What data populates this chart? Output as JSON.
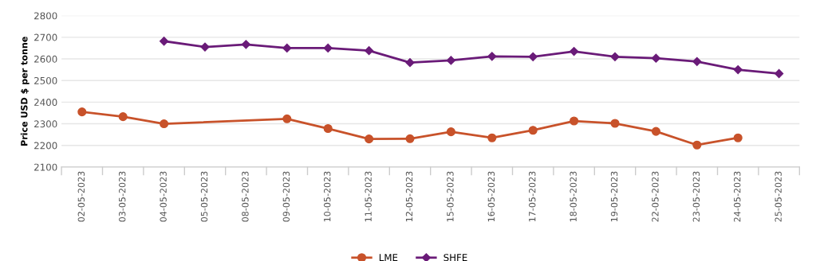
{
  "chart_data": {
    "type": "line",
    "ylabel": "Price USD $ per tonne",
    "categories": [
      "02-05-2023",
      "03-05-2023",
      "04-05-2023",
      "05-05-2023",
      "08-05-2023",
      "09-05-2023",
      "10-05-2023",
      "11-05-2023",
      "12-05-2023",
      "15-05-2023",
      "16-05-2023",
      "17-05-2023",
      "18-05-2023",
      "19-05-2023",
      "22-05-2023",
      "23-05-2023",
      "24-05-2023",
      "25-05-2023"
    ],
    "series": [
      {
        "name": "LME",
        "color": "#c8522a",
        "marker": "circle",
        "values": [
          2355,
          2333,
          2300,
          null,
          null,
          2323,
          2278,
          2230,
          2231,
          2263,
          2235,
          2270,
          2313,
          2302,
          2265,
          2202,
          2235,
          null
        ]
      },
      {
        "name": "SHFE",
        "color": "#6a1b78",
        "marker": "diamond",
        "values": [
          null,
          null,
          2682,
          2655,
          2667,
          2650,
          2650,
          2638,
          2583,
          2593,
          2612,
          2610,
          2635,
          2610,
          2603,
          2588,
          2550,
          2532
        ]
      }
    ],
    "ylim": [
      2100,
      2800
    ],
    "yticks": [
      2100,
      2200,
      2300,
      2400,
      2500,
      2600,
      2700,
      2800
    ],
    "grid": "y",
    "legend": "bottom",
    "line_style": "solid"
  }
}
